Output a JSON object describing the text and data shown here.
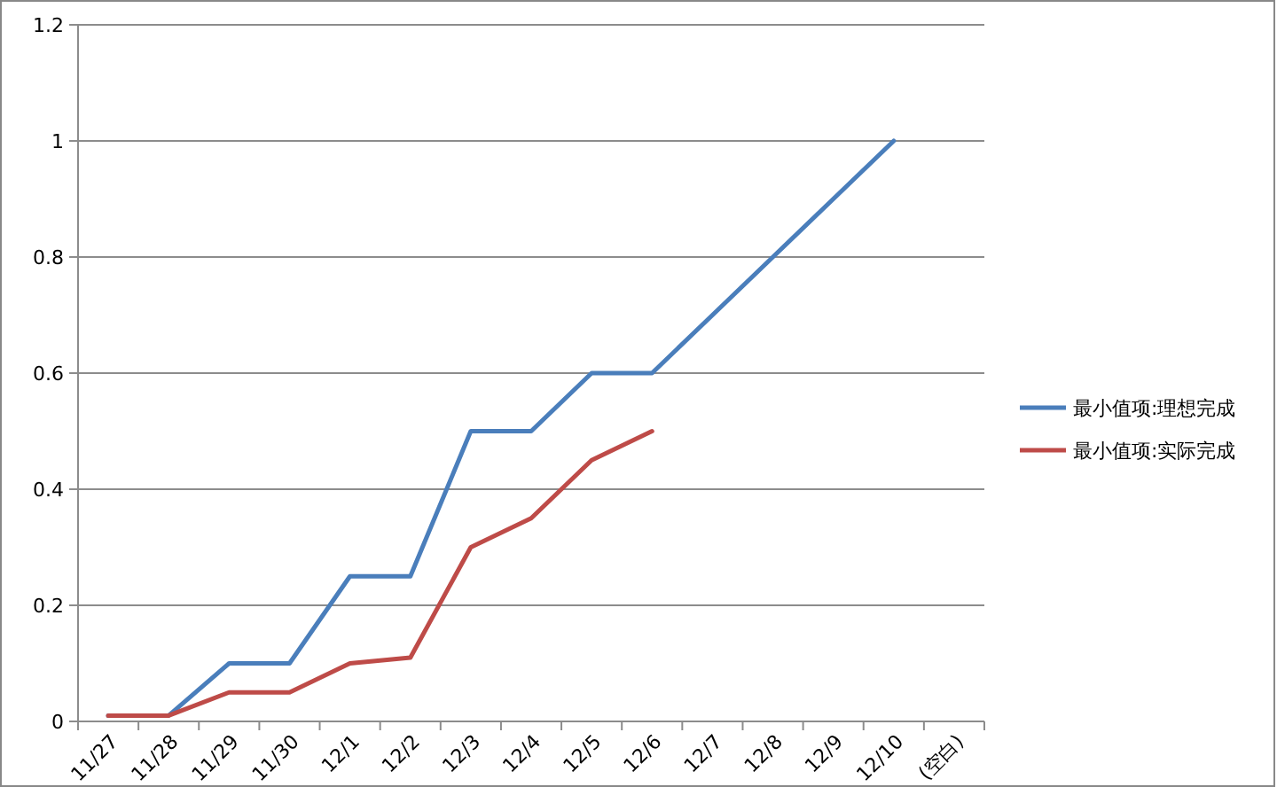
{
  "chart_data": {
    "type": "line",
    "categories": [
      "11/27",
      "11/28",
      "11/29",
      "11/30",
      "12/1",
      "12/2",
      "12/3",
      "12/4",
      "12/5",
      "12/6",
      "12/7",
      "12/8",
      "12/9",
      "12/10",
      "(空白)"
    ],
    "series": [
      {
        "name": "最小值项:理想完成",
        "color": "#4a7ebb",
        "values": [
          0.01,
          0.01,
          0.1,
          0.1,
          0.25,
          0.25,
          0.5,
          0.5,
          0.6,
          0.6,
          0.7,
          0.8,
          0.9,
          1.0,
          null
        ]
      },
      {
        "name": "最小值项:实际完成",
        "color": "#be4b48",
        "values": [
          0.01,
          0.01,
          0.05,
          0.05,
          0.1,
          0.11,
          0.3,
          0.35,
          0.45,
          0.5,
          null,
          null,
          null,
          null,
          null
        ]
      }
    ],
    "ylim": [
      0,
      1.2
    ],
    "yticks": [
      0,
      0.2,
      0.4,
      0.6,
      0.8,
      1,
      1.2
    ],
    "grid": "y",
    "legend": "right",
    "marker": "none",
    "line_style": "solid"
  }
}
